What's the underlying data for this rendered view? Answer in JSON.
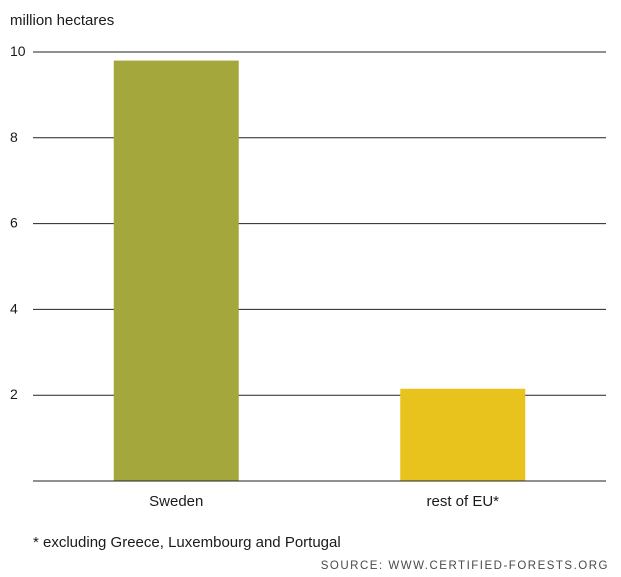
{
  "chart_data": {
    "type": "bar",
    "ylabel": "million hectares",
    "categories": [
      "Sweden",
      "rest of EU*"
    ],
    "values": [
      9.8,
      2.15
    ],
    "bar_colors": [
      "#a4a83c",
      "#e8c31e"
    ],
    "ylim": [
      0,
      10
    ],
    "yticks": [
      2,
      4,
      6,
      8,
      10
    ],
    "grid": true
  },
  "footnote": "* excluding Greece, Luxembourg and Portugal",
  "source": "SOURCE: WWW.CERTIFIED-FORESTS.ORG"
}
